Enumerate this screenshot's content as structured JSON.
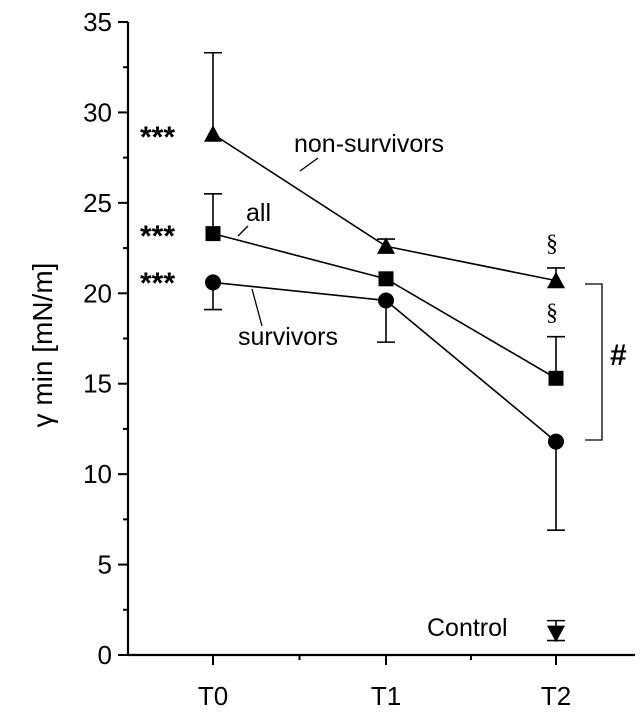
{
  "chart_data": {
    "type": "line",
    "title": "",
    "xlabel": "",
    "ylabel": "γ min [mN/m]",
    "categories": [
      "T0",
      "T1",
      "T2"
    ],
    "ylim": [
      0,
      35
    ],
    "yticks": [
      0,
      5,
      10,
      15,
      20,
      25,
      30,
      35
    ],
    "grid": false,
    "series": [
      {
        "name": "non-survivors",
        "marker": "triangle-up",
        "values": [
          28.8,
          22.6,
          20.7
        ],
        "error_up": [
          4.5,
          0.4,
          0.7
        ]
      },
      {
        "name": "all",
        "marker": "square",
        "values": [
          23.3,
          20.8,
          15.3
        ],
        "error_up": [
          2.2,
          0,
          2.3
        ]
      },
      {
        "name": "survivors",
        "marker": "circle",
        "values": [
          20.6,
          19.6,
          11.8
        ],
        "error_down": [
          1.5,
          2.3,
          4.9
        ]
      }
    ],
    "control": {
      "label": "Control",
      "marker": "triangle-down",
      "x": "T2",
      "value": 1.2,
      "error": [
        0.8,
        1.9
      ]
    },
    "annotations": {
      "significance_t0": [
        "***",
        "***",
        "***"
      ],
      "section_marks": [
        "§",
        "§"
      ],
      "hash": "#"
    }
  }
}
